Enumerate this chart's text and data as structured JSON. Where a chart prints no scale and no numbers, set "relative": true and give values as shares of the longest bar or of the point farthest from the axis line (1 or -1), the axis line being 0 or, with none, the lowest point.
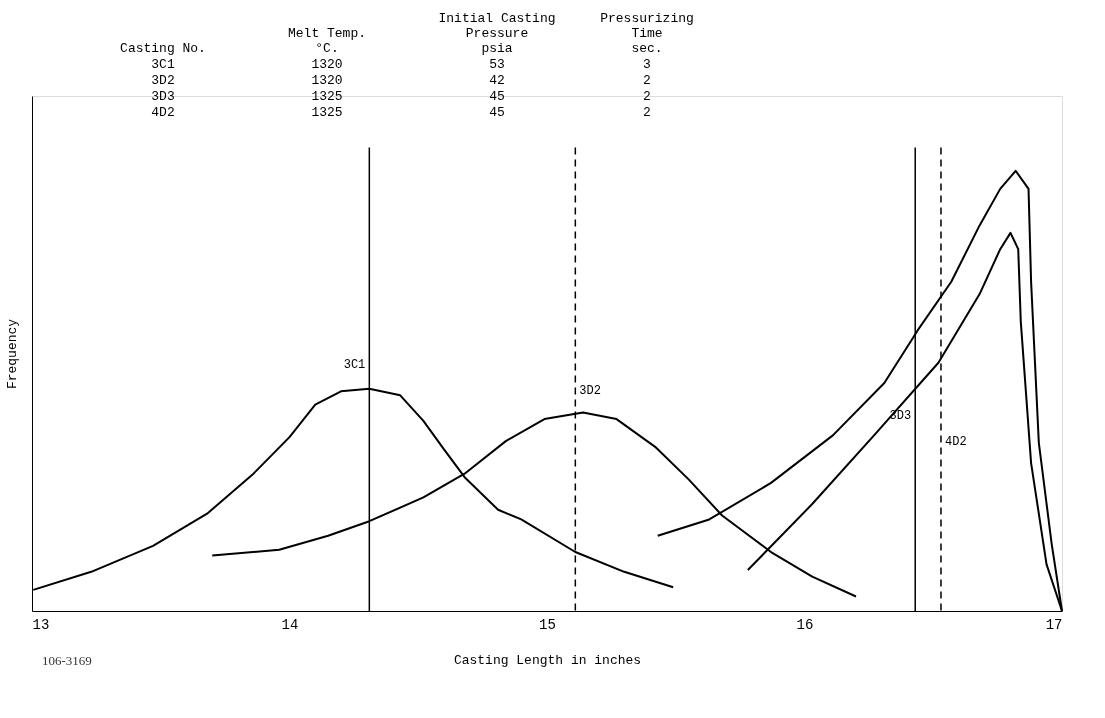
{
  "chart_data": {
    "type": "line",
    "relative": true,
    "xlabel": "Casting Length in inches",
    "ylabel": "Frequency",
    "xlim": [
      13,
      17
    ],
    "xticks": [
      13,
      14,
      15,
      16,
      17
    ],
    "tick_labels": "x",
    "grid": false,
    "marker": "none",
    "line_style": "solid",
    "series": [
      {
        "color": "#000000",
        "x": [
          13.005,
          13.23,
          13.47,
          13.68,
          13.86,
          14.0,
          14.1,
          14.2,
          14.31,
          14.43,
          14.52,
          14.6,
          14.68,
          14.81,
          14.9,
          15.11,
          15.3,
          15.49
        ],
        "values": [
          0.048,
          0.089,
          0.148,
          0.221,
          0.312,
          0.395,
          0.469,
          0.499,
          0.505,
          0.49,
          0.432,
          0.367,
          0.304,
          0.23,
          0.208,
          0.134,
          0.089,
          0.054
        ]
      },
      {
        "color": "#000000",
        "x": [
          13.7,
          13.96,
          14.15,
          14.31,
          14.52,
          14.68,
          14.84,
          14.99,
          15.14,
          15.27,
          15.42,
          15.55,
          15.68,
          15.87,
          16.03,
          16.2
        ],
        "values": [
          0.126,
          0.139,
          0.171,
          0.204,
          0.258,
          0.312,
          0.386,
          0.436,
          0.451,
          0.436,
          0.373,
          0.299,
          0.217,
          0.134,
          0.078,
          0.033
        ]
      },
      {
        "color": "#000000",
        "x": [
          15.43,
          15.63,
          15.87,
          16.11,
          16.31,
          16.44,
          16.57,
          16.68,
          16.76,
          16.82,
          16.87,
          16.88,
          16.91,
          16.96,
          17.0
        ],
        "values": [
          0.171,
          0.208,
          0.291,
          0.399,
          0.518,
          0.638,
          0.748,
          0.876,
          0.959,
          1.0,
          0.959,
          0.748,
          0.382,
          0.152,
          0
        ]
      },
      {
        "color": "#000000",
        "x": [
          15.78,
          16.03,
          16.27,
          16.52,
          16.68,
          16.76,
          16.8,
          16.83,
          16.84,
          16.88,
          16.94,
          17.0
        ],
        "values": [
          0.093,
          0.243,
          0.399,
          0.564,
          0.72,
          0.822,
          0.859,
          0.822,
          0.657,
          0.336,
          0.106,
          0
        ]
      }
    ],
    "ref_lines": [
      {
        "axis": "x",
        "value": 14.31,
        "label": "3C1",
        "color": "#000000",
        "line_style": "solid"
      },
      {
        "axis": "x",
        "value": 15.11,
        "label": "3D2",
        "color": "#000000",
        "line_style": "dashed"
      },
      {
        "axis": "x",
        "value": 16.43,
        "label": "3D3",
        "color": "#000000",
        "line_style": "solid"
      },
      {
        "axis": "x",
        "value": 16.53,
        "label": "4D2",
        "color": "#000000",
        "line_style": "dashed"
      }
    ],
    "annotations": [
      "Casting No.",
      "Melt Temp.\n°C.",
      "Initial Casting\nPressure\npsia",
      "Pressurizing\nTime\nsec.",
      "3C1",
      "1320",
      "53",
      "3",
      "3D2",
      "1320",
      "42",
      "2",
      "3D3",
      "1325",
      "45",
      "2",
      "4D2",
      "1325",
      "45",
      "2",
      "106-3169"
    ]
  }
}
